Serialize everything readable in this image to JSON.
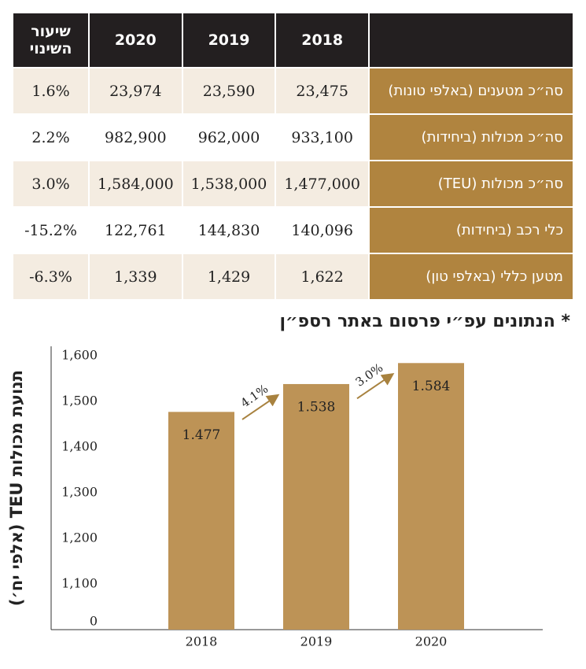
{
  "table": {
    "header": [
      "2018",
      "2019",
      "2020",
      "שיעור השינוי"
    ],
    "rows": [
      [
        "סה״כ מטענים (באלפי טונות)",
        "23,475",
        "23,590",
        "23,974",
        "1.6%"
      ],
      [
        "סה״כ מכולות (ביחידות)",
        "933,100",
        "962,000",
        "982,900",
        "2.2%"
      ],
      [
        "סה״כ מכולות (TEU)",
        "1,477,000",
        "1,538,000",
        "1,584,000",
        "3.0%"
      ],
      [
        "כלי רכב (ביחידות)",
        "140,096",
        "144,830",
        "122,761",
        "-15.2%"
      ],
      [
        "מטען כללי (באלפי טון)",
        "1,622",
        "1,429",
        "1,339",
        "-6.3%"
      ]
    ]
  },
  "note": "* הנתונים עפ״י פרסום באתר רספ״ן",
  "chart_data": {
    "type": "bar",
    "y_label": "תנועת מכולות TEU (אלפי יח׳)",
    "categories": [
      "2018",
      "2019",
      "2020"
    ],
    "values": [
      1477,
      1538,
      1584
    ],
    "value_labels": [
      "1.477",
      "1.538",
      "1.584"
    ],
    "color": "#bd9356",
    "annotations": [
      "4.1%",
      "3.0%"
    ],
    "ylim": [
      1000,
      1600
    ],
    "axis_break": true,
    "yticks": [
      0,
      {
        "value": 1100,
        "label": "1,100"
      },
      {
        "value": 1200,
        "label": "1,200"
      },
      {
        "value": 1300,
        "label": "1,300"
      },
      {
        "value": 1400,
        "label": "1,400"
      },
      {
        "value": 1500,
        "label": "1,500"
      },
      {
        "value": 1600,
        "label": "1,600"
      }
    ]
  }
}
